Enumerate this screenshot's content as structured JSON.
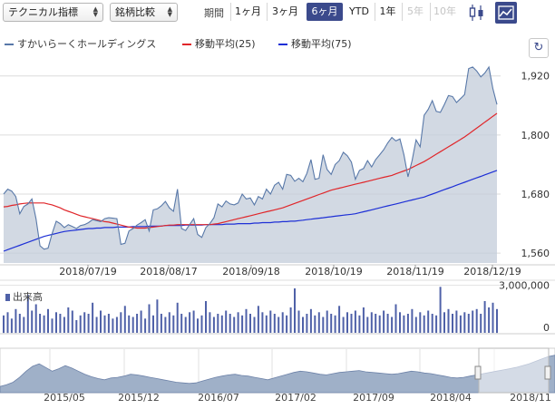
{
  "toolbar": {
    "technical_select": "テクニカル指標",
    "compare_select": "銘柄比較",
    "period_label": "期間",
    "periods": [
      {
        "label": "1ヶ月",
        "state": "normal"
      },
      {
        "label": "3ヶ月",
        "state": "normal"
      },
      {
        "label": "6ヶ月",
        "state": "active"
      },
      {
        "label": "YTD",
        "state": "normal"
      },
      {
        "label": "1年",
        "state": "normal"
      },
      {
        "label": "5年",
        "state": "disabled"
      },
      {
        "label": "10年",
        "state": "disabled"
      }
    ],
    "chart_type_icons": [
      "candlestick-icon",
      "area-chart-icon"
    ]
  },
  "legend": {
    "price": "すかいらーくホールディングス",
    "ma25": "移動平均(25)",
    "ma75": "移動平均(75)"
  },
  "refresh_icon": "↻",
  "volume_label": "出来高",
  "colors": {
    "accent": "#3b4a8c",
    "ma25": "#e0262a",
    "ma75": "#1d2fd6",
    "price_line": "#5878a8",
    "fill": "#c3ccd9",
    "volume": "#4f61a8",
    "navigator_fill": "#9fb0c8"
  },
  "chart_data": {
    "type": "area",
    "price_axis": {
      "ticks": [
        1560,
        1680,
        1800,
        1920
      ],
      "tick_labels": [
        "1,560",
        "1,680",
        "1,800",
        "1,920"
      ],
      "ylim": [
        1540,
        1960
      ]
    },
    "x_ticks": [
      "2018/07/19",
      "2018/08/17",
      "2018/09/18",
      "2018/10/19",
      "2018/11/19",
      "2018/12/19"
    ],
    "series": [
      {
        "name": "すかいらーくホールディングス",
        "values": [
          1680,
          1690,
          1686,
          1675,
          1640,
          1655,
          1660,
          1670,
          1630,
          1575,
          1568,
          1570,
          1600,
          1625,
          1620,
          1612,
          1618,
          1614,
          1610,
          1616,
          1618,
          1622,
          1628,
          1626,
          1624,
          1630,
          1632,
          1631,
          1630,
          1578,
          1580,
          1605,
          1610,
          1617,
          1622,
          1628,
          1605,
          1648,
          1650,
          1656,
          1665,
          1652,
          1645,
          1690,
          1610,
          1606,
          1618,
          1630,
          1598,
          1592,
          1612,
          1620,
          1632,
          1660,
          1654,
          1666,
          1660,
          1658,
          1662,
          1680,
          1670,
          1672,
          1658,
          1675,
          1670,
          1690,
          1680,
          1698,
          1704,
          1690,
          1720,
          1718,
          1706,
          1712,
          1705,
          1722,
          1750,
          1710,
          1712,
          1760,
          1730,
          1720,
          1740,
          1748,
          1765,
          1758,
          1745,
          1710,
          1728,
          1732,
          1748,
          1735,
          1750,
          1760,
          1770,
          1784,
          1795,
          1788,
          1792,
          1760,
          1715,
          1748,
          1790,
          1776,
          1840,
          1852,
          1870,
          1848,
          1846,
          1862,
          1880,
          1878,
          1866,
          1874,
          1882,
          1935,
          1938,
          1930,
          1918,
          1926,
          1938,
          1894,
          1862
        ]
      },
      {
        "name": "移動平均(25)",
        "values": [
          1654,
          1655,
          1657,
          1658,
          1660,
          1661,
          1662,
          1662,
          1662,
          1662,
          1662,
          1660,
          1658,
          1655,
          1652,
          1648,
          1645,
          1642,
          1639,
          1636,
          1634,
          1632,
          1630,
          1628,
          1626,
          1624,
          1623,
          1621,
          1619,
          1617,
          1615,
          1613,
          1612,
          1611,
          1611,
          1611,
          1612,
          1613,
          1614,
          1615,
          1616,
          1617,
          1617,
          1618,
          1618,
          1618,
          1618,
          1618,
          1618,
          1618,
          1618,
          1618,
          1619,
          1620,
          1622,
          1624,
          1626,
          1628,
          1630,
          1632,
          1634,
          1636,
          1638,
          1640,
          1642,
          1644,
          1646,
          1648,
          1650,
          1652,
          1655,
          1658,
          1661,
          1664,
          1667,
          1670,
          1673,
          1676,
          1679,
          1682,
          1685,
          1688,
          1690,
          1692,
          1694,
          1696,
          1698,
          1700,
          1702,
          1704,
          1706,
          1708,
          1710,
          1712,
          1714,
          1716,
          1718,
          1721,
          1724,
          1727,
          1730,
          1734,
          1738,
          1742,
          1746,
          1751,
          1756,
          1761,
          1766,
          1771,
          1776,
          1781,
          1786,
          1791,
          1796,
          1802,
          1808,
          1814,
          1820,
          1826,
          1832,
          1838,
          1844
        ]
      },
      {
        "name": "移動平均(75)",
        "values": [
          1564,
          1567,
          1570,
          1573,
          1576,
          1579,
          1582,
          1585,
          1588,
          1591,
          1594,
          1596,
          1598,
          1600,
          1602,
          1604,
          1605,
          1606,
          1607,
          1608,
          1609,
          1610,
          1610,
          1611,
          1611,
          1612,
          1612,
          1612,
          1613,
          1613,
          1613,
          1613,
          1614,
          1614,
          1614,
          1614,
          1615,
          1615,
          1615,
          1615,
          1616,
          1616,
          1616,
          1616,
          1616,
          1617,
          1617,
          1617,
          1617,
          1617,
          1618,
          1618,
          1618,
          1618,
          1618,
          1619,
          1619,
          1619,
          1620,
          1620,
          1620,
          1620,
          1621,
          1621,
          1622,
          1622,
          1622,
          1623,
          1623,
          1624,
          1624,
          1625,
          1625,
          1626,
          1627,
          1628,
          1629,
          1630,
          1631,
          1632,
          1633,
          1634,
          1635,
          1636,
          1637,
          1638,
          1639,
          1640,
          1642,
          1644,
          1646,
          1648,
          1650,
          1652,
          1654,
          1656,
          1658,
          1660,
          1662,
          1664,
          1666,
          1668,
          1670,
          1672,
          1674,
          1677,
          1680,
          1683,
          1686,
          1689,
          1692,
          1695,
          1698,
          1701,
          1704,
          1707,
          1710,
          1713,
          1716,
          1719,
          1722,
          1725,
          1728
        ]
      }
    ],
    "volume": {
      "axis_labels": [
        "3,000,000",
        "0"
      ],
      "ylim": [
        0,
        3200000
      ],
      "values": [
        1100000,
        1300000,
        900000,
        1500000,
        1200000,
        1000000,
        2400000,
        1400000,
        1800000,
        1200000,
        1100000,
        1500000,
        900000,
        1300000,
        1200000,
        1000000,
        1600000,
        1400000,
        800000,
        1100000,
        1300000,
        1200000,
        1900000,
        1000000,
        1400000,
        1100000,
        1200000,
        900000,
        1000000,
        1300000,
        1700000,
        1100000,
        1000000,
        1200000,
        1400000,
        900000,
        1800000,
        1100000,
        2100000,
        1200000,
        1000000,
        1300000,
        1100000,
        1900000,
        1200000,
        1000000,
        1300000,
        1400000,
        900000,
        1100000,
        2000000,
        1300000,
        1000000,
        1200000,
        1100000,
        1400000,
        1200000,
        1000000,
        1300000,
        1100000,
        1500000,
        1200000,
        1000000,
        1700000,
        1300000,
        1100000,
        1400000,
        1200000,
        1000000,
        1300000,
        1100000,
        1600000,
        2800000,
        1400000,
        1000000,
        1200000,
        1500000,
        1100000,
        1300000,
        1000000,
        1400000,
        1200000,
        1100000,
        1700000,
        1000000,
        1300000,
        1200000,
        1400000,
        1100000,
        1600000,
        1000000,
        1300000,
        1200000,
        1100000,
        1400000,
        1200000,
        1000000,
        1800000,
        1300000,
        1100000,
        1200000,
        1500000,
        1000000,
        1300000,
        1100000,
        1400000,
        1200000,
        1100000,
        2900000,
        1300000,
        1500000,
        1200000,
        1400000,
        1100000,
        1300000,
        1200000,
        1400000,
        1500000,
        1200000,
        2000000,
        1600000,
        1900000,
        1500000
      ]
    },
    "navigator": {
      "x_ticks": [
        "2015/05",
        "2015/12",
        "2016/07",
        "2017/02",
        "2017/09",
        "2018/04",
        "2018/11"
      ],
      "values": [
        1450,
        1480,
        1520,
        1600,
        1700,
        1780,
        1820,
        1760,
        1700,
        1740,
        1790,
        1750,
        1700,
        1650,
        1610,
        1580,
        1560,
        1590,
        1600,
        1620,
        1650,
        1640,
        1620,
        1600,
        1580,
        1560,
        1540,
        1520,
        1510,
        1500,
        1510,
        1540,
        1570,
        1600,
        1620,
        1640,
        1650,
        1630,
        1620,
        1600,
        1580,
        1560,
        1590,
        1620,
        1650,
        1680,
        1700,
        1690,
        1670,
        1650,
        1640,
        1660,
        1680,
        1690,
        1700,
        1710,
        1690,
        1680,
        1670,
        1660,
        1650,
        1660,
        1680,
        1700,
        1690,
        1670,
        1660,
        1640,
        1620,
        1600,
        1590,
        1600,
        1620,
        1640,
        1660,
        1680,
        1700,
        1720,
        1740,
        1760,
        1790,
        1820,
        1860,
        1900,
        1940,
        1960
      ],
      "ylim": [
        1350,
        2000
      ]
    }
  }
}
